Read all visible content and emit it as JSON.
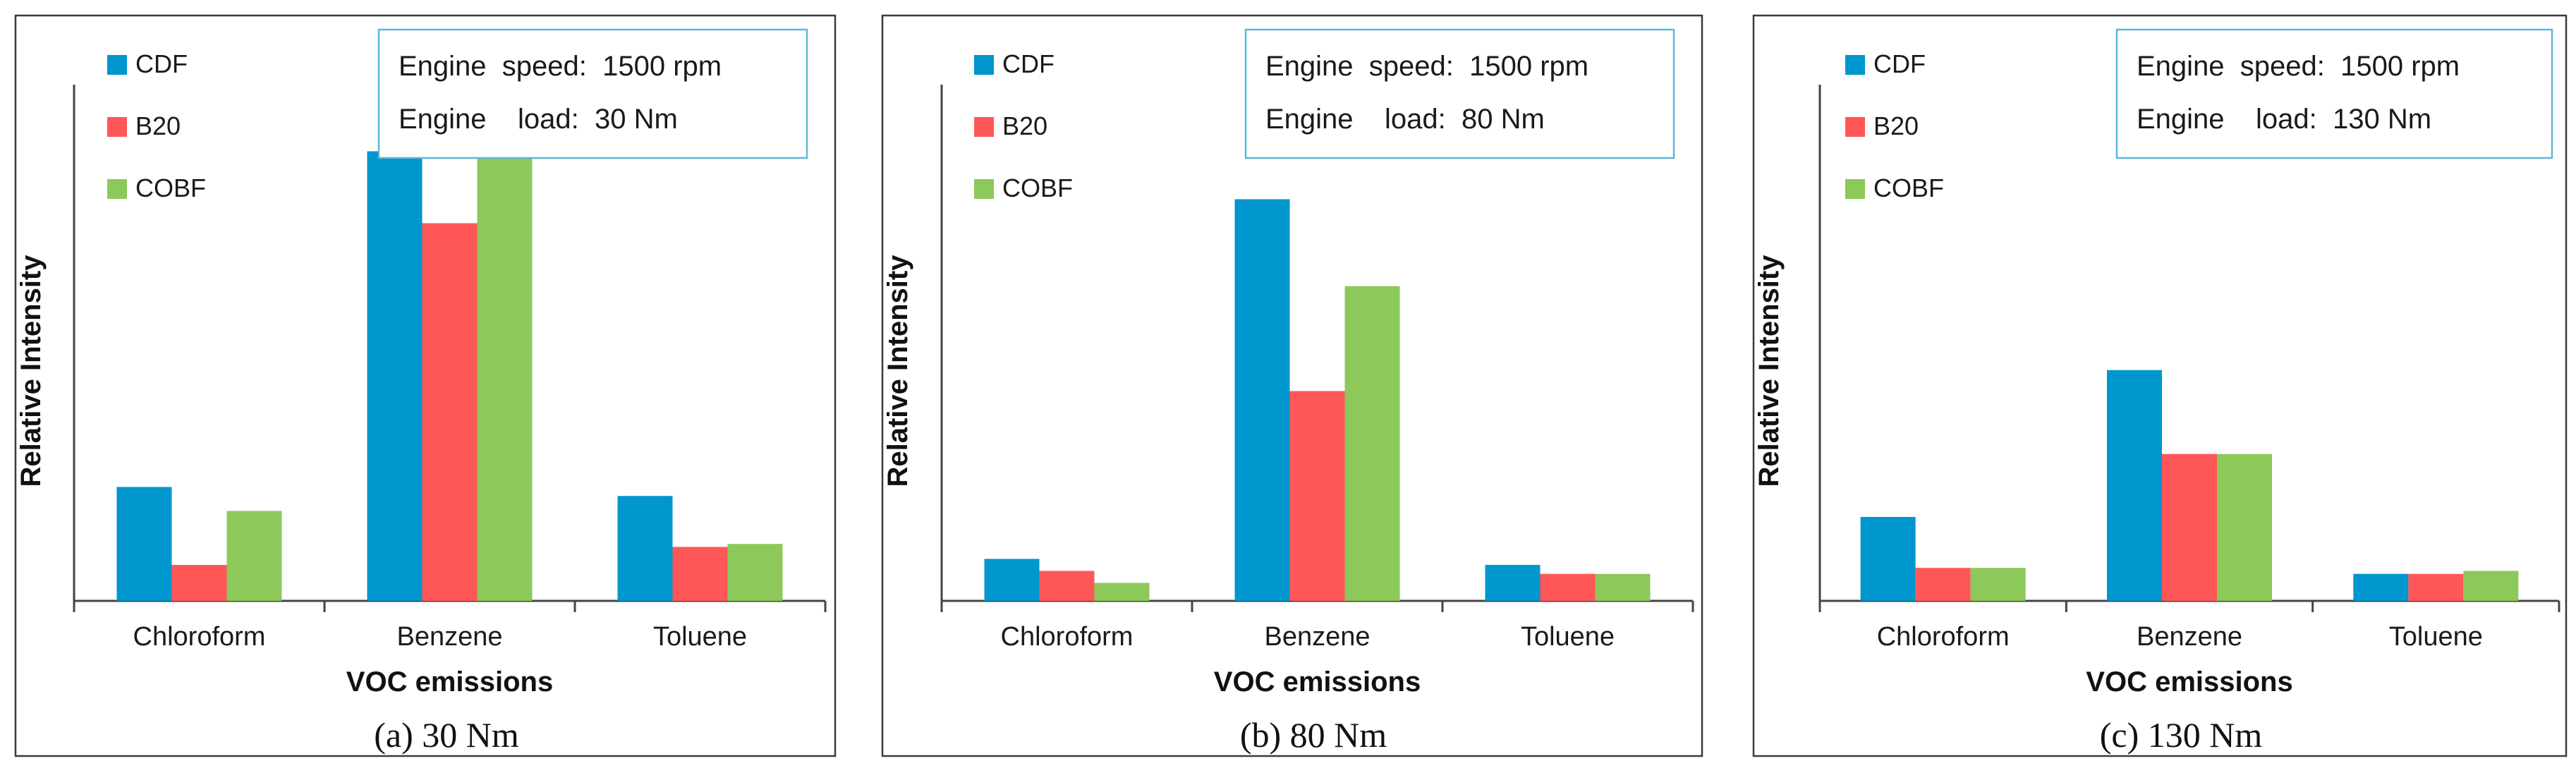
{
  "colors": {
    "CDF": "#0096CE",
    "B20": "#FF5757",
    "COBF": "#8CC85A",
    "frame": "#3A3A3A",
    "info_border": "#5BB8D8"
  },
  "chart_data": [
    {
      "type": "bar",
      "caption": "(a) 30 Nm",
      "xlabel": "VOC emissions",
      "ylabel": "Relative Intensity",
      "categories": [
        "Chloroform",
        "Benzene",
        "Toluene"
      ],
      "series": [
        {
          "name": "CDF",
          "values": [
            19,
            75,
            17.5
          ]
        },
        {
          "name": "B20",
          "values": [
            6,
            63,
            9
          ]
        },
        {
          "name": "COBF",
          "values": [
            15,
            75.5,
            9.5
          ]
        }
      ],
      "ylim": [
        0,
        100
      ],
      "legend": [
        "CDF",
        "B20",
        "COBF"
      ],
      "info": {
        "line1": "Engine  speed:  1500 rpm",
        "line2": "Engine    load:  30 Nm"
      }
    },
    {
      "type": "bar",
      "caption": "(b) 80 Nm",
      "xlabel": "VOC emissions",
      "ylabel": "Relative Intensity",
      "categories": [
        "Chloroform",
        "Benzene",
        "Toluene"
      ],
      "series": [
        {
          "name": "CDF",
          "values": [
            7,
            67,
            6
          ]
        },
        {
          "name": "B20",
          "values": [
            5,
            35,
            4.5
          ]
        },
        {
          "name": "COBF",
          "values": [
            3,
            52.5,
            4.5
          ]
        }
      ],
      "ylim": [
        0,
        100
      ],
      "legend": [
        "CDF",
        "B20",
        "COBF"
      ],
      "info": {
        "line1": "Engine  speed:  1500 rpm",
        "line2": "Engine    load:  80 Nm"
      }
    },
    {
      "type": "bar",
      "caption": "(c) 130 Nm",
      "xlabel": "VOC emissions",
      "ylabel": "Relative Intensity",
      "categories": [
        "Chloroform",
        "Benzene",
        "Toluene"
      ],
      "series": [
        {
          "name": "CDF",
          "values": [
            14,
            38.5,
            4.5
          ]
        },
        {
          "name": "B20",
          "values": [
            5.5,
            24.5,
            4.5
          ]
        },
        {
          "name": "COBF",
          "values": [
            5.5,
            24.5,
            5
          ]
        }
      ],
      "ylim": [
        0,
        100
      ],
      "legend": [
        "CDF",
        "B20",
        "COBF"
      ],
      "info": {
        "line1": "Engine  speed:  1500 rpm",
        "line2": "Engine    load:  130 Nm"
      }
    }
  ]
}
